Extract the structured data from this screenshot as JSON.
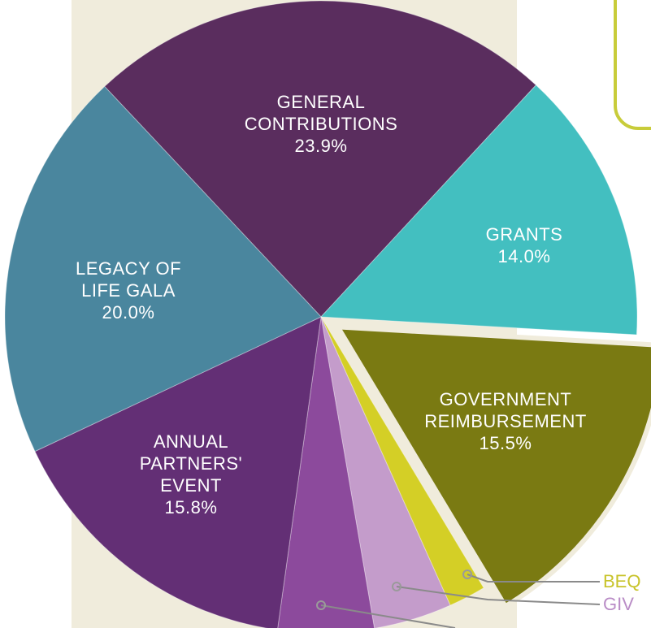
{
  "chart_data": {
    "type": "pie",
    "categories": [
      "GENERAL CONTRIBUTIONS",
      "GRANTS",
      "GOVERNMENT REIMBURSEMENT",
      "BEQ",
      "GIV",
      null,
      "ANNUAL PARTNERS' EVENT",
      "LEGACY OF LIFE GALA"
    ],
    "values": [
      23.9,
      14.0,
      15.5,
      1.9,
      4.0,
      4.9,
      15.8,
      20.0
    ],
    "value_labels": [
      "23.9%",
      "14.0%",
      "15.5%",
      null,
      null,
      null,
      "15.8%",
      "20.0%"
    ],
    "colors": [
      "#5a2d5e",
      "#43bfc0",
      "#7a7a12",
      "#d4cf26",
      "#c49ccb",
      "#8c4a9c",
      "#632f75",
      "#4a869e"
    ]
  }
}
